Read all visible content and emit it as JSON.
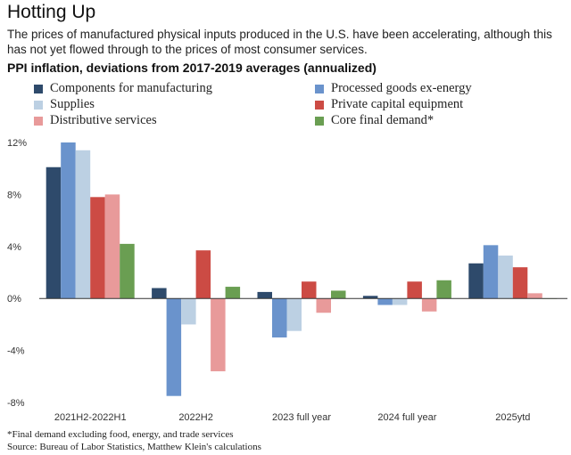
{
  "header": {
    "title": "Hotting Up",
    "subtitle": "The prices of manufactured physical inputs produced in the U.S. have been accelerating, although this has not yet flowed through to the prices of most consumer services."
  },
  "chart_data": {
    "type": "bar",
    "title": "PPI inflation, deviations from 2017-2019 averages (annualized)",
    "categories": [
      "2021H2-2022H1",
      "2022H2",
      "2023 full year",
      "2024 full year",
      "2025ytd"
    ],
    "ylim": [
      -8,
      12
    ],
    "yticks": [
      -8,
      -4,
      0,
      4,
      8,
      12
    ],
    "ytick_labels": [
      "-8%",
      "-4%",
      "0%",
      "4%",
      "8%",
      "12%"
    ],
    "legend_placement": "top",
    "grid": false,
    "series": [
      {
        "name": "Components for manufacturing",
        "color": "#2e4a6b",
        "values": [
          10.1,
          0.8,
          0.5,
          0.2,
          2.7
        ]
      },
      {
        "name": "Processed goods ex-energy",
        "color": "#6a93cc",
        "values": [
          12.0,
          -7.5,
          -3.0,
          -0.5,
          4.1
        ]
      },
      {
        "name": "Supplies",
        "color": "#bcd0e3",
        "values": [
          11.4,
          -2.0,
          -2.5,
          -0.5,
          3.3
        ]
      },
      {
        "name": "Private capital equipment",
        "color": "#cc4b44",
        "values": [
          7.8,
          3.7,
          1.3,
          1.3,
          2.4
        ]
      },
      {
        "name": "Distributive services",
        "color": "#e89a9a",
        "values": [
          8.0,
          -5.6,
          -1.1,
          -1.0,
          0.4
        ]
      },
      {
        "name": "Core final demand*",
        "color": "#6a9e52",
        "values": [
          4.2,
          0.9,
          0.6,
          1.4,
          0.0
        ]
      }
    ]
  },
  "footnotes": {
    "note": "*Final demand excluding food, energy, and trade services",
    "source": "Source: Bureau of Labor Statistics, Matthew Klein's calculations"
  }
}
